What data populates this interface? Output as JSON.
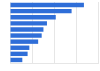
{
  "chart_data": {
    "type": "bar",
    "orientation": "horizontal",
    "categories": [
      null,
      null,
      null,
      null,
      null,
      null,
      null,
      null,
      null,
      null
    ],
    "values": [
      84,
      70,
      52,
      42,
      38,
      36,
      32,
      22,
      20,
      14
    ],
    "color": "#2f6ed8",
    "xlim": [
      0,
      100
    ],
    "xticks": [
      0,
      25,
      50,
      75,
      100
    ],
    "grid": true,
    "tick_labels": false
  }
}
